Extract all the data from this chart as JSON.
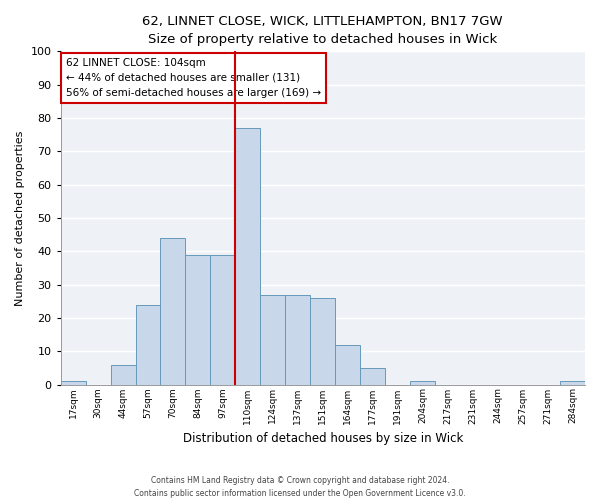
{
  "title": "62, LINNET CLOSE, WICK, LITTLEHAMPTON, BN17 7GW",
  "subtitle": "Size of property relative to detached houses in Wick",
  "xlabel": "Distribution of detached houses by size in Wick",
  "ylabel": "Number of detached properties",
  "bar_labels": [
    "17sqm",
    "30sqm",
    "44sqm",
    "57sqm",
    "70sqm",
    "84sqm",
    "97sqm",
    "110sqm",
    "124sqm",
    "137sqm",
    "151sqm",
    "164sqm",
    "177sqm",
    "191sqm",
    "204sqm",
    "217sqm",
    "231sqm",
    "244sqm",
    "257sqm",
    "271sqm",
    "284sqm"
  ],
  "bar_values": [
    1,
    0,
    6,
    24,
    44,
    39,
    39,
    77,
    27,
    27,
    26,
    12,
    5,
    0,
    1,
    0,
    0,
    0,
    0,
    0,
    1
  ],
  "bar_color": "#c8d8ea",
  "bar_edge_color": "#6699bb",
  "plot_bg_color": "#eef2f7",
  "fig_bg_color": "#ffffff",
  "grid_color": "#ffffff",
  "ylim": [
    0,
    100
  ],
  "yticks": [
    0,
    10,
    20,
    30,
    40,
    50,
    60,
    70,
    80,
    90,
    100
  ],
  "property_line_idx": 6.5,
  "annotation_title": "62 LINNET CLOSE: 104sqm",
  "annotation_line1": "← 44% of detached houses are smaller (131)",
  "annotation_line2": "56% of semi-detached houses are larger (169) →",
  "annotation_box_color": "#ffffff",
  "annotation_box_edge_color": "#cc0000",
  "red_line_color": "#cc0000",
  "footer_line1": "Contains HM Land Registry data © Crown copyright and database right 2024.",
  "footer_line2": "Contains public sector information licensed under the Open Government Licence v3.0."
}
